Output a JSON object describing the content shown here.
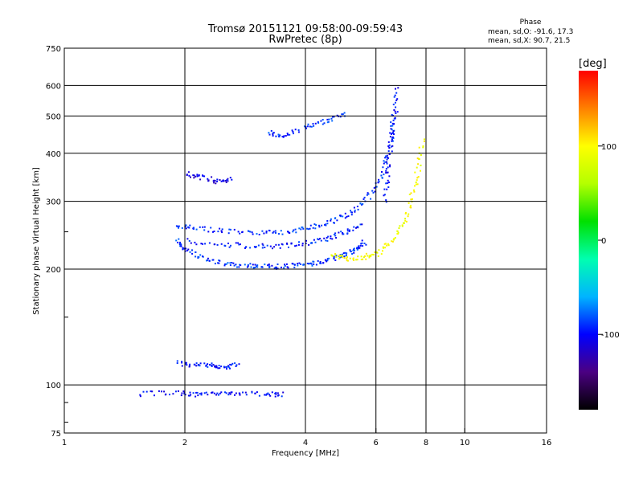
{
  "chart_data": {
    "type": "scatter",
    "title": "Tromsø 20151121 09:58:00-09:59:43",
    "subtitle": "RwPretec (8p)",
    "xlabel": "Frequency [MHz]",
    "ylabel": "Stationary phase Virtual Height [km]",
    "xscale": "log",
    "yscale": "log",
    "xlim": [
      1,
      16
    ],
    "ylim": [
      75,
      750
    ],
    "grid": true,
    "x_ticks": [
      {
        "value": 1,
        "label": "1"
      },
      {
        "value": 2,
        "label": "2"
      },
      {
        "value": 4,
        "label": "4"
      },
      {
        "value": 6,
        "label": "6"
      },
      {
        "value": 8,
        "label": "8"
      },
      {
        "value": 10,
        "label": "10"
      },
      {
        "value": 16,
        "label": "16"
      }
    ],
    "y_ticks": [
      {
        "value": 75,
        "label": "75"
      },
      {
        "value": 100,
        "label": "100"
      },
      {
        "value": 200,
        "label": "200"
      },
      {
        "value": 300,
        "label": "300"
      },
      {
        "value": 400,
        "label": "400"
      },
      {
        "value": 500,
        "label": "500"
      },
      {
        "value": 600,
        "label": "600"
      },
      {
        "value": 750,
        "label": "750"
      }
    ],
    "phase_info": {
      "heading": "Phase",
      "line_o": "mean, sd,O: -91.6, 17.3",
      "line_x": "mean, sd,X:  90.7, 21.5"
    },
    "colorbar": {
      "label": "[deg]",
      "range": [
        -180,
        180
      ],
      "ticks": [
        {
          "value": 100,
          "label": "100"
        },
        {
          "value": 0,
          "label": "0"
        },
        {
          "value": -100,
          "label": "-100"
        }
      ],
      "colormap": [
        "#000000",
        "#4b0082",
        "#0000ff",
        "#00b4ff",
        "#00ffb0",
        "#00e000",
        "#b4ff00",
        "#ffff00",
        "#ff8000",
        "#ff0000"
      ]
    },
    "traces": [
      {
        "name_hint": "o-trace-lower-F",
        "phase": -90,
        "x": [
          1.9,
          2.0,
          2.2,
          2.5,
          2.8,
          3.1,
          3.4,
          3.8,
          4.2,
          4.6,
          5.0,
          5.3,
          5.6
        ],
        "y": [
          240,
          226,
          214,
          208,
          205,
          204,
          204,
          205,
          208,
          213,
          219,
          227,
          236
        ]
      },
      {
        "name_hint": "o-trace-upper-F",
        "phase": -90,
        "x": [
          1.9,
          2.1,
          2.5,
          3.0,
          3.5,
          4.0,
          4.5,
          5.0,
          5.5,
          6.0,
          6.3,
          6.5,
          6.7
        ],
        "y": [
          262,
          256,
          252,
          250,
          251,
          256,
          264,
          276,
          296,
          328,
          370,
          430,
          520
        ]
      },
      {
        "name_hint": "o-trace-mid-F",
        "phase": -95,
        "x": [
          2.0,
          2.5,
          3.0,
          3.5,
          4.0,
          4.5,
          5.0,
          5.5
        ],
        "y": [
          238,
          233,
          230,
          231,
          235,
          241,
          250,
          262
        ]
      },
      {
        "name_hint": "x-trace-F",
        "phase": 95,
        "x": [
          4.6,
          5.0,
          5.5,
          6.0,
          6.5,
          7.0,
          7.3,
          7.6,
          7.8
        ],
        "y": [
          218,
          214,
          215,
          220,
          235,
          262,
          300,
          360,
          440
        ]
      },
      {
        "name_hint": "cusp-6.5MHz",
        "phase": -100,
        "x": [
          6.3,
          6.4,
          6.5,
          6.6,
          6.7
        ],
        "y": [
          300,
          360,
          430,
          500,
          600
        ]
      },
      {
        "name_hint": "upper-layer",
        "phase": -90,
        "x": [
          3.2,
          3.5,
          4.0,
          4.5,
          5.0
        ],
        "y": [
          455,
          448,
          470,
          490,
          510
        ]
      },
      {
        "name_hint": "spread-patch-2.2",
        "phase": -110,
        "x": [
          2.0,
          2.2,
          2.4,
          2.6
        ],
        "y": [
          355,
          348,
          340,
          345
        ]
      },
      {
        "name_hint": "E-layer-110",
        "phase": -95,
        "x": [
          1.9,
          2.1,
          2.3,
          2.5,
          2.7
        ],
        "y": [
          115,
          113,
          113,
          112,
          113
        ]
      },
      {
        "name_hint": "E-layer-95",
        "phase": -100,
        "x": [
          1.5,
          1.9,
          2.1,
          2.4,
          2.7,
          3.2,
          3.5
        ],
        "y": [
          95,
          96,
          95,
          95,
          96,
          95,
          95
        ]
      }
    ]
  }
}
